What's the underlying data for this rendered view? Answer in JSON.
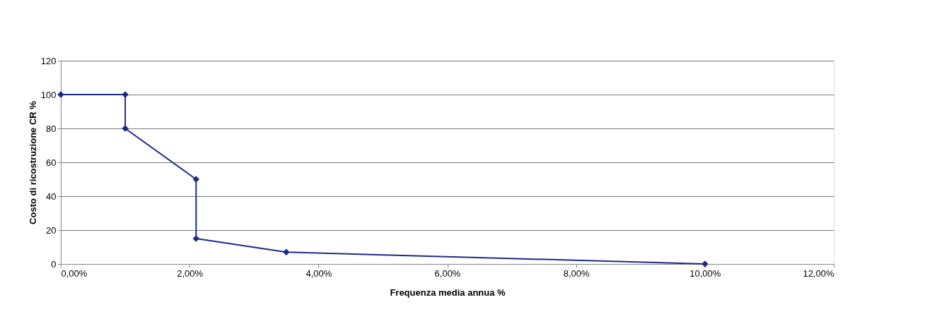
{
  "chart_data": {
    "type": "line",
    "xlabel": "Frequenza media annua %",
    "ylabel": "Costo di ricostruzione CR %",
    "series": [
      {
        "color": "#1f2a87",
        "x": [
          0,
          1,
          1,
          2.1,
          2.1,
          3.5,
          10
        ],
        "values": [
          100,
          100,
          80,
          50,
          15,
          7,
          0
        ]
      }
    ],
    "xlim": [
      0,
      12
    ],
    "xticks": [
      {
        "value": 0,
        "label": "0,00%"
      },
      {
        "value": 2,
        "label": "2,00%"
      },
      {
        "value": 4,
        "label": "4,00%"
      },
      {
        "value": 6,
        "label": "6,00%"
      },
      {
        "value": 8,
        "label": "8,00%"
      },
      {
        "value": 10,
        "label": "10,00%"
      },
      {
        "value": 12,
        "label": "12,00%"
      }
    ],
    "ylim": [
      0,
      120
    ],
    "yticks": [
      0,
      20,
      40,
      60,
      80,
      100,
      120
    ],
    "grid": "y",
    "marker": "diamond",
    "line_style": "solid"
  }
}
